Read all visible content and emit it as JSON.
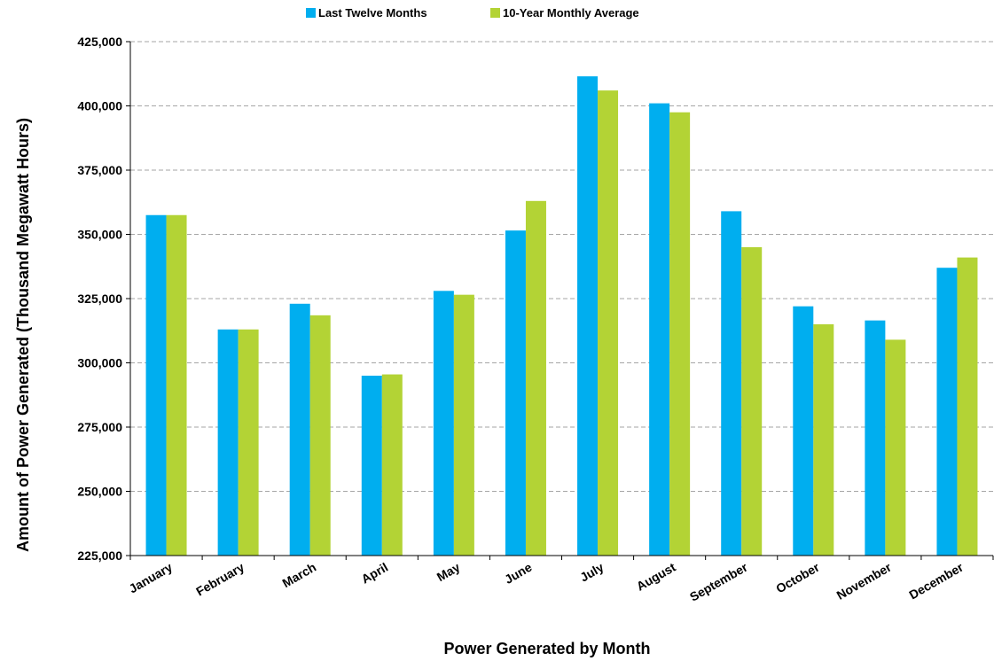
{
  "chart_data": {
    "type": "bar",
    "title": "",
    "xlabel": "Power Generated by Month",
    "ylabel": "Amount of Power Generated (Thousand Megawatt Hours)",
    "categories": [
      "January",
      "February",
      "March",
      "April",
      "May",
      "June",
      "July",
      "August",
      "September",
      "October",
      "November",
      "December"
    ],
    "series": [
      {
        "name": "Last Twelve Months",
        "color": "#00aeef",
        "values": [
          357500,
          313000,
          323000,
          295000,
          328000,
          351500,
          411500,
          401000,
          359000,
          322000,
          316500,
          337000
        ]
      },
      {
        "name": "10-Year Monthly Average",
        "color": "#b3d335",
        "values": [
          357500,
          313000,
          318500,
          295500,
          326500,
          363000,
          406000,
          397500,
          345000,
          315000,
          309000,
          341000
        ]
      }
    ],
    "ylim": [
      225000,
      425000
    ],
    "yticks": [
      225000,
      250000,
      275000,
      300000,
      325000,
      350000,
      375000,
      400000,
      425000
    ],
    "ytick_labels": [
      "225,000",
      "250,000",
      "275,000",
      "300,000",
      "325,000",
      "350,000",
      "375,000",
      "400,000",
      "425,000"
    ],
    "grid": true,
    "legend_position": "top-center"
  }
}
